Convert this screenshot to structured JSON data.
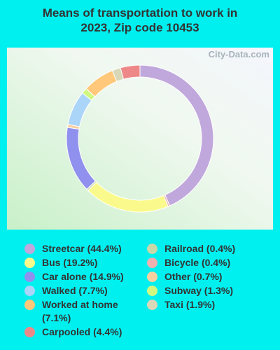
{
  "chart_data": {
    "type": "donut",
    "title": "Means of transportation to work in 2023, Zip code 10453",
    "watermark": "City-Data.com",
    "categories": [
      "Streetcar",
      "Bicycle",
      "Bus",
      "Railroad",
      "Car alone",
      "Other",
      "Walked",
      "Subway",
      "Worked at home",
      "Taxi",
      "Carpooled"
    ],
    "values": [
      44.4,
      0.4,
      19.2,
      0.4,
      14.9,
      0.7,
      7.7,
      1.3,
      7.1,
      1.9,
      4.4
    ],
    "value_labels": [
      "(44.4%)",
      "(0.4%)",
      "(19.2%)",
      "(0.4%)",
      "(14.9%)",
      "(0.7%)",
      "(7.7%)",
      "(1.3%)",
      "(7.1%)",
      "(1.9%)",
      "(4.4%)"
    ],
    "colors": [
      "#c0a8dc",
      "#f0b0b0",
      "#fafa8c",
      "#c8d8a8",
      "#9090ee",
      "#f8d0a0",
      "#aad4f8",
      "#d0f880",
      "#ffc87a",
      "#d8d8b8",
      "#ee8888"
    ]
  }
}
